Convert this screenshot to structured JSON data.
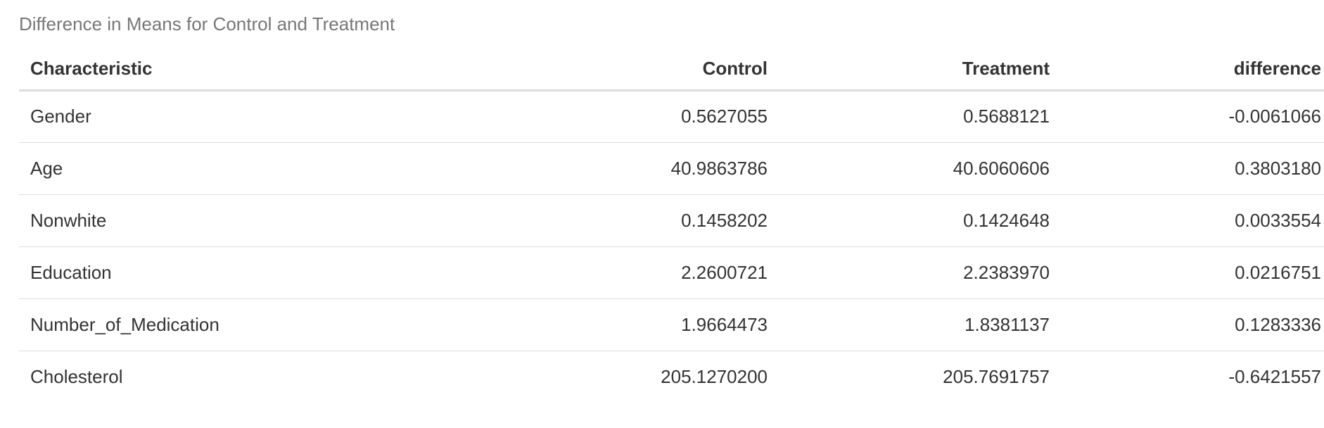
{
  "caption": "Difference in Means for Control and Treatment",
  "table": {
    "headers": [
      "Characteristic",
      "Control",
      "Treatment",
      "difference"
    ],
    "rows": [
      [
        "Gender",
        "0.5627055",
        "0.5688121",
        "-0.0061066"
      ],
      [
        "Age",
        "40.9863786",
        "40.6060606",
        "0.3803180"
      ],
      [
        "Nonwhite",
        "0.1458202",
        "0.1424648",
        "0.0033554"
      ],
      [
        "Education",
        "2.2600721",
        "2.2383970",
        "0.0216751"
      ],
      [
        "Number_of_Medication",
        "1.9664473",
        "1.8381137",
        "0.1283336"
      ],
      [
        "Cholesterol",
        "205.1270200",
        "205.7691757",
        "-0.6421557"
      ]
    ]
  },
  "colors": {
    "text": "#333333",
    "caption": "#777777",
    "rule": "#dddddd",
    "background": "#ffffff"
  }
}
